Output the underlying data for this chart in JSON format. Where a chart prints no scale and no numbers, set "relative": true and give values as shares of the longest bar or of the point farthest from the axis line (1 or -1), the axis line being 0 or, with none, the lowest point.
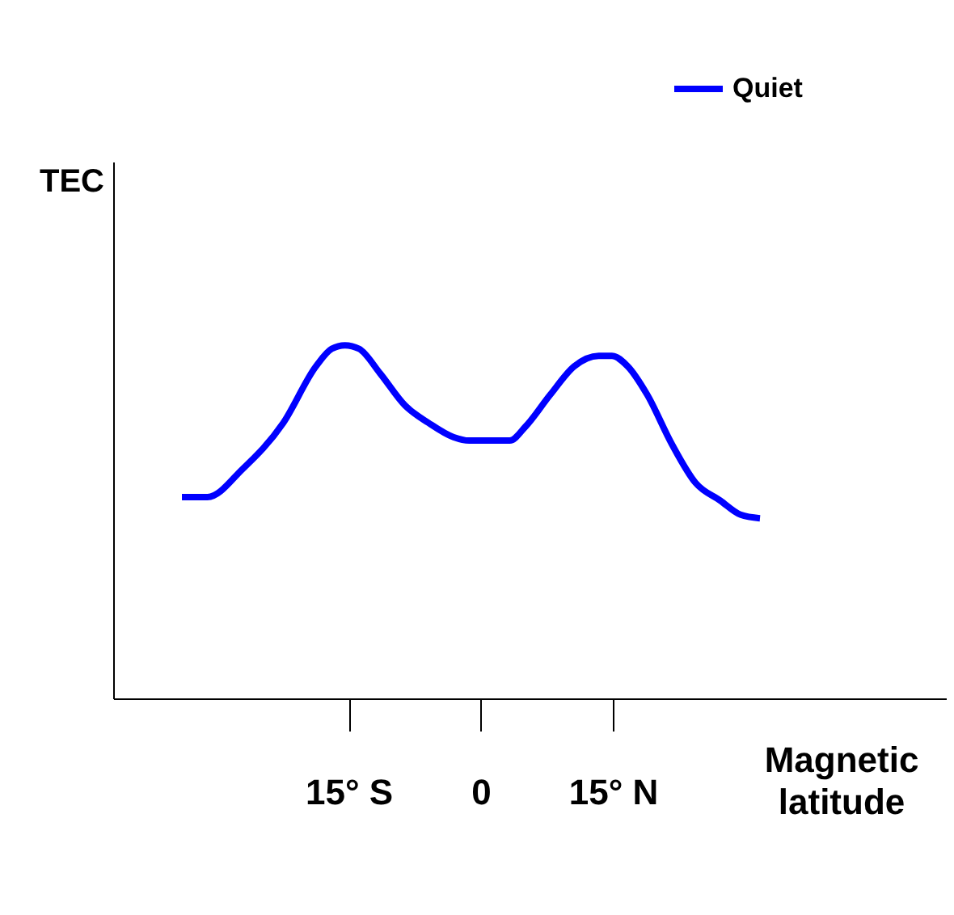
{
  "chart_data": {
    "type": "line",
    "relative": true,
    "ylabel": "TEC",
    "xlabel": "Magnetic latitude",
    "x": [
      -33.9,
      -31.0,
      -27.0,
      -22.4,
      -18.7,
      -16.9,
      -15.4,
      -13.8,
      -11.4,
      -8.6,
      -5.9,
      -3.1,
      -1.3,
      3.3,
      5.1,
      7.9,
      10.6,
      13.4,
      14.9,
      16.7,
      18.9,
      21.7,
      24.4,
      27.2,
      29.5,
      31.7
    ],
    "xlim": [
      -41.7,
      52.8
    ],
    "xticks": [
      {
        "value": -15,
        "label": "15° S"
      },
      0,
      {
        "value": 15,
        "label": "15° N"
      }
    ],
    "series": [
      {
        "name": "Quiet",
        "color": "#0000ff",
        "values": [
          0.57,
          0.57,
          0.65,
          0.78,
          0.94,
          0.99,
          1.0,
          0.99,
          0.92,
          0.83,
          0.78,
          0.74,
          0.73,
          0.73,
          0.77,
          0.86,
          0.94,
          0.97,
          0.97,
          0.94,
          0.86,
          0.72,
          0.61,
          0.56,
          0.52,
          0.51
        ]
      }
    ],
    "legend": "top right",
    "grid": false,
    "marker": "none",
    "line_style": "solid"
  }
}
